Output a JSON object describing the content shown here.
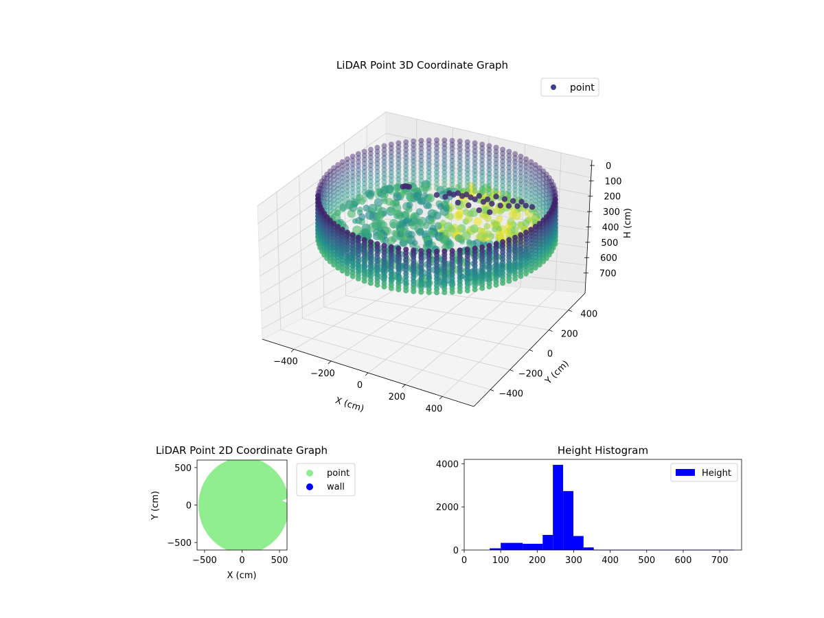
{
  "chart_data": [
    {
      "type": "scatter",
      "projection": "3d",
      "title": "LiDAR Point 3D Coordinate Graph",
      "xlabel": "X (cm)",
      "ylabel": "Y (cm)",
      "zlabel": "H (cm)",
      "xlim": [
        -570,
        570
      ],
      "ylim": [
        -570,
        570
      ],
      "zlim": [
        760,
        0
      ],
      "x_ticks": [
        "−400",
        "−200",
        "0",
        "200",
        "400"
      ],
      "y_ticks": [
        "−400",
        "−200",
        "0",
        "200",
        "400"
      ],
      "z_ticks": [
        "0",
        "100",
        "200",
        "300",
        "400",
        "500",
        "600",
        "700"
      ],
      "grid": true,
      "legend": {
        "entries": [
          "point"
        ],
        "placement": "top-right"
      },
      "series": [
        {
          "name": "point",
          "color": "#3b3f8a",
          "colormap": "viridis",
          "shape": "cylindrical scan",
          "radius_cm": 560,
          "height_range_cm": [
            0,
            750
          ],
          "floor_height_cm": 600,
          "cluster_points": [
            {
              "x": -150,
              "y": 300,
              "h": 250
            },
            {
              "x": -140,
              "y": 310,
              "h": 260
            },
            {
              "x": -130,
              "y": 295,
              "h": 255
            },
            {
              "x": -160,
              "y": 320,
              "h": 270
            },
            {
              "x": 60,
              "y": 200,
              "h": 270
            },
            {
              "x": 80,
              "y": 190,
              "h": 280
            },
            {
              "x": 100,
              "y": 210,
              "h": 275
            },
            {
              "x": 120,
              "y": 180,
              "h": 290
            },
            {
              "x": 140,
              "y": 200,
              "h": 285
            },
            {
              "x": 160,
              "y": 170,
              "h": 300
            },
            {
              "x": 180,
              "y": 150,
              "h": 310
            },
            {
              "x": 200,
              "y": 190,
              "h": 295
            },
            {
              "x": 220,
              "y": 120,
              "h": 320
            },
            {
              "x": 240,
              "y": 150,
              "h": 310
            },
            {
              "x": 260,
              "y": 100,
              "h": 330
            },
            {
              "x": 300,
              "y": 80,
              "h": 340
            },
            {
              "x": 340,
              "y": 60,
              "h": 330
            },
            {
              "x": 380,
              "y": 40,
              "h": 320
            },
            {
              "x": 420,
              "y": 20,
              "h": 300
            },
            {
              "x": 450,
              "y": 10,
              "h": 310
            },
            {
              "x": 250,
              "y": 20,
              "h": 380
            },
            {
              "x": 200,
              "y": 40,
              "h": 370
            },
            {
              "x": 150,
              "y": 100,
              "h": 350
            },
            {
              "x": 100,
              "y": 120,
              "h": 330
            },
            {
              "x": 40,
              "y": 180,
              "h": 300
            },
            {
              "x": 0,
              "y": 200,
              "h": 290
            },
            {
              "x": 320,
              "y": 140,
              "h": 300
            },
            {
              "x": 360,
              "y": 120,
              "h": 310
            },
            {
              "x": 400,
              "y": 90,
              "h": 300
            },
            {
              "x": 280,
              "y": 170,
              "h": 290
            }
          ]
        }
      ]
    },
    {
      "type": "scatter",
      "title": "LiDAR Point 2D Coordinate Graph",
      "xlabel": "X (cm)",
      "ylabel": "Y (cm)",
      "xlim": [
        -600,
        600
      ],
      "ylim": [
        -600,
        600
      ],
      "x_ticks": [
        "−500",
        "0",
        "500"
      ],
      "y_ticks": [
        "500",
        "0",
        "−500"
      ],
      "legend": {
        "entries": [
          "point",
          "wall"
        ],
        "placement": "outside-right"
      },
      "series": [
        {
          "name": "point",
          "color": "#90ee90",
          "shape": "filled circle",
          "center": [
            0,
            0
          ],
          "radius_cm": 580
        },
        {
          "name": "wall",
          "color": "#0000ff",
          "values": []
        }
      ]
    },
    {
      "type": "bar",
      "subtype": "histogram",
      "title": "Height Histogram",
      "xlabel": "",
      "ylabel": "",
      "xlim": [
        0,
        760
      ],
      "ylim": [
        0,
        4200
      ],
      "x_ticks": [
        "0",
        "100",
        "200",
        "300",
        "400",
        "500",
        "600",
        "700"
      ],
      "y_ticks": [
        "0",
        "2000",
        "4000"
      ],
      "legend": {
        "entries": [
          "Height"
        ],
        "placement": "top-right"
      },
      "series": [
        {
          "name": "Height",
          "color": "#0000ff",
          "bins": [
            {
              "x0": 70,
              "x1": 100,
              "count": 80
            },
            {
              "x0": 100,
              "x1": 160,
              "count": 330
            },
            {
              "x0": 160,
              "x1": 215,
              "count": 290
            },
            {
              "x0": 215,
              "x1": 243,
              "count": 700
            },
            {
              "x0": 243,
              "x1": 271,
              "count": 3950
            },
            {
              "x0": 271,
              "x1": 299,
              "count": 2730
            },
            {
              "x0": 299,
              "x1": 327,
              "count": 650
            },
            {
              "x0": 327,
              "x1": 355,
              "count": 120
            },
            {
              "x0": 355,
              "x1": 740,
              "count": 15
            }
          ]
        }
      ]
    }
  ]
}
